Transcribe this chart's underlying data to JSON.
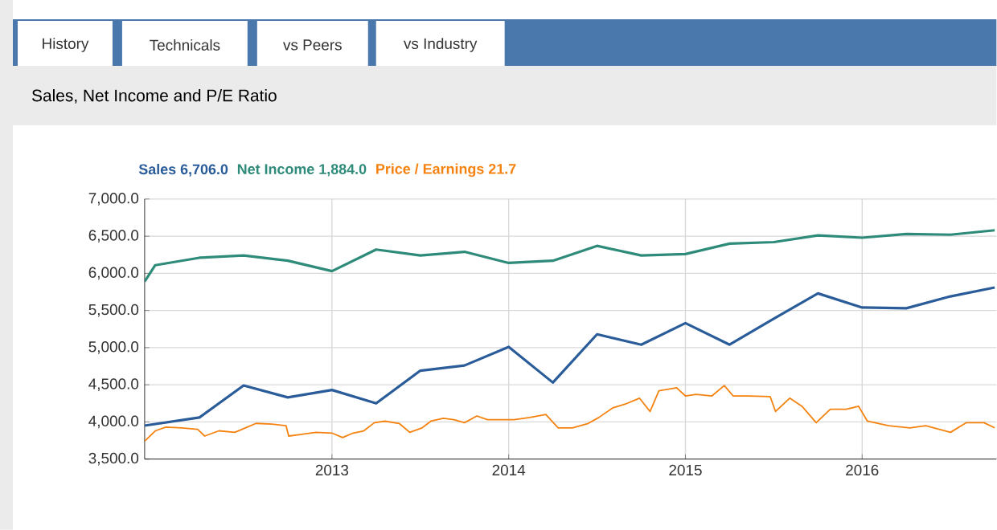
{
  "chart_data": {
    "type": "line",
    "title": "Sales, Net Income and P/E Ratio",
    "annotations": [
      "History",
      "Technicals",
      "vs Peers",
      "vs Industry"
    ],
    "xlim": [
      2011.94,
      2016.76
    ],
    "xticks": [
      2013,
      2014,
      2015,
      2016
    ],
    "ylim": [
      3500,
      7000
    ],
    "yticks": [
      {
        "value": 3500,
        "label": "3,500.0"
      },
      {
        "value": 4000,
        "label": "4,000.0"
      },
      {
        "value": 4500,
        "label": "4,500.0"
      },
      {
        "value": 5000,
        "label": "5,000.0"
      },
      {
        "value": 5500,
        "label": "5,500.0"
      },
      {
        "value": 6000,
        "label": "6,000.0"
      },
      {
        "value": 6500,
        "label": "6,500.0"
      },
      {
        "value": 7000,
        "label": "7,000.0"
      }
    ],
    "grid": true,
    "legend": "top",
    "line_style": "solid",
    "series": [
      {
        "name": "Sales 6,706.0",
        "color": "#2a5c9a",
        "x": [
          2011.94,
          2012.25,
          2012.5,
          2012.75,
          2013.0,
          2013.25,
          2013.5,
          2013.75,
          2014.0,
          2014.25,
          2014.5,
          2014.75,
          2015.0,
          2015.25,
          2015.5,
          2015.75,
          2016.0,
          2016.25,
          2016.5,
          2016.75
        ],
        "values": [
          3950,
          4060,
          4490,
          4330,
          4430,
          4250,
          4690,
          4760,
          5010,
          4530,
          5180,
          5040,
          5330,
          5040,
          5390,
          5730,
          5540,
          5530,
          5690,
          5810
        ]
      },
      {
        "name": "Net Income 1,884.0",
        "color": "#2e8b7a",
        "x": [
          2011.94,
          2012.0,
          2012.25,
          2012.5,
          2012.75,
          2013.0,
          2013.25,
          2013.5,
          2013.75,
          2014.0,
          2014.25,
          2014.5,
          2014.75,
          2015.0,
          2015.25,
          2015.5,
          2015.75,
          2016.0,
          2016.25,
          2016.5,
          2016.75
        ],
        "values": [
          5890,
          6110,
          6210,
          6240,
          6170,
          6030,
          6320,
          6240,
          6290,
          6140,
          6170,
          6370,
          6240,
          6260,
          6400,
          6420,
          6510,
          6480,
          6530,
          6520,
          6580
        ]
      },
      {
        "name": "Price / Earnings 21.7",
        "color": "#f5820f",
        "x": [
          2011.94,
          2012.0,
          2012.06,
          2012.15,
          2012.24,
          2012.28,
          2012.36,
          2012.45,
          2012.51,
          2012.57,
          2012.66,
          2012.74,
          2012.755,
          2012.82,
          2012.91,
          2013.0,
          2013.06,
          2013.12,
          2013.18,
          2013.24,
          2013.3,
          2013.38,
          2013.44,
          2013.51,
          2013.56,
          2013.63,
          2013.69,
          2013.75,
          2013.82,
          2013.88,
          2013.97,
          2014.03,
          2014.12,
          2014.21,
          2014.28,
          2014.36,
          2014.45,
          2014.51,
          2014.59,
          2014.66,
          2014.74,
          2014.8,
          2014.85,
          2014.95,
          2015.0,
          2015.06,
          2015.15,
          2015.22,
          2015.27,
          2015.36,
          2015.48,
          2015.51,
          2015.59,
          2015.66,
          2015.74,
          2015.82,
          2015.91,
          2015.98,
          2016.03,
          2016.15,
          2016.27,
          2016.36,
          2016.5,
          2016.59,
          2016.69,
          2016.75
        ],
        "values": [
          3740,
          3880,
          3930,
          3920,
          3900,
          3810,
          3880,
          3860,
          3920,
          3980,
          3970,
          3950,
          3810,
          3830,
          3860,
          3850,
          3790,
          3850,
          3880,
          3990,
          4010,
          3980,
          3860,
          3920,
          4010,
          4050,
          4030,
          3990,
          4080,
          4030,
          4030,
          4030,
          4060,
          4100,
          3920,
          3920,
          3980,
          4060,
          4190,
          4240,
          4320,
          4140,
          4420,
          4460,
          4350,
          4370,
          4350,
          4490,
          4350,
          4350,
          4340,
          4140,
          4320,
          4210,
          3990,
          4170,
          4170,
          4210,
          4010,
          3950,
          3920,
          3950,
          3860,
          3990,
          3990,
          3920
        ]
      }
    ]
  }
}
